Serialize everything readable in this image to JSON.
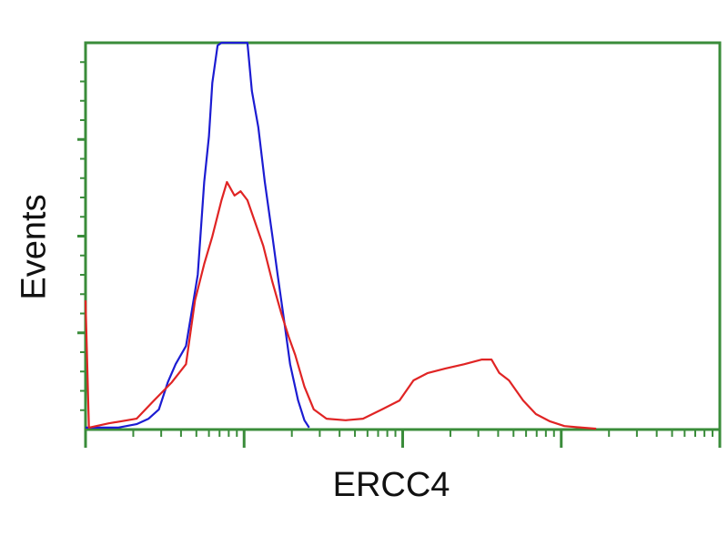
{
  "chart_data": {
    "type": "line",
    "title": "",
    "xlabel": "ERCC4",
    "ylabel": "Events",
    "xscale": "log",
    "xlim": [
      1,
      10000
    ],
    "ylim": [
      0,
      100
    ],
    "grid": false,
    "legend": "none",
    "tick_labels_shown": false,
    "colors": {
      "axis": "#3a8c3a",
      "blue_series": "#1c1cd2",
      "red_series": "#e02424"
    },
    "series": [
      {
        "color": "#1c1cd2",
        "x": [
          1,
          1.6,
          2.1,
          2.5,
          2.9,
          3.3,
          3.7,
          4.3,
          4.7,
          5.1,
          5.6,
          6.0,
          6.3,
          6.8,
          7.2,
          9.1,
          10.5,
          11.2,
          12.3,
          13.5,
          15.1,
          16.2,
          17.8,
          19.5,
          21.9,
          24.0,
          25.7
        ],
        "y": [
          0.5,
          0.5,
          1.4,
          2.8,
          5.2,
          12.2,
          16.9,
          21.6,
          31.1,
          40,
          64,
          75.8,
          89.6,
          99.3,
          100,
          100,
          100,
          87.5,
          78.1,
          64,
          49.9,
          40.5,
          28.7,
          16.9,
          7.5,
          2.4,
          0.5
        ]
      },
      {
        "color": "#e02424",
        "x": [
          1,
          1.05,
          1.4,
          2.1,
          2.7,
          3.5,
          4.3,
          4.9,
          5.6,
          6.3,
          7.2,
          7.8,
          8.7,
          9.5,
          10.5,
          11.5,
          13.2,
          15.1,
          17.2,
          19.1,
          21,
          24,
          27.5,
          33.1,
          43.6,
          56.2,
          74.1,
          95.5,
          117,
          144,
          186,
          245,
          316,
          363,
          407,
          468,
          575,
          692,
          851,
          1047,
          1349,
          1660
        ],
        "y": [
          33.4,
          0.5,
          1.6,
          2.8,
          7.5,
          12.2,
          16.9,
          33.4,
          42.8,
          49.9,
          59.3,
          64,
          60.5,
          61.6,
          59.3,
          54.6,
          47.5,
          38.1,
          29.9,
          24,
          19.3,
          11.1,
          5.2,
          2.8,
          2.4,
          2.8,
          5.2,
          7.5,
          12.7,
          14.6,
          15.8,
          16.9,
          18.1,
          18.1,
          14.6,
          12.7,
          7.5,
          4.0,
          2.1,
          0.9,
          0.5,
          0.2
        ]
      }
    ]
  }
}
